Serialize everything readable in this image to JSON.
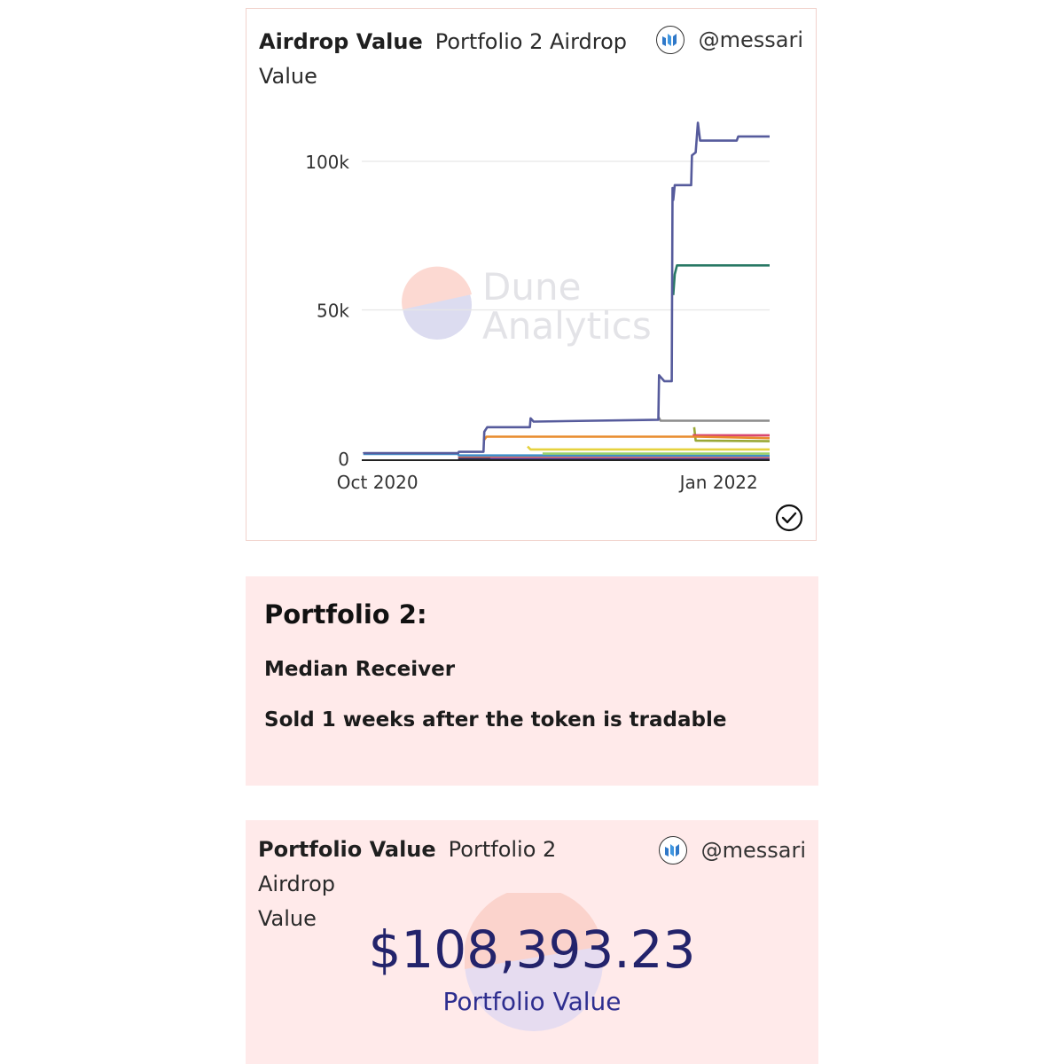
{
  "card1": {
    "title": "Airdrop Value",
    "subtitle_line1": "Portfolio 2 Airdrop",
    "subtitle_line2": "Value",
    "handle": "@messari",
    "logo_icon": "messari-logo-icon",
    "status_icon": "check-circle-icon"
  },
  "watermark": {
    "line1": "Dune",
    "line2": "Analytics"
  },
  "chart_data": {
    "type": "line",
    "x_tick_labels": [
      "Oct 2020",
      "Jan 2022"
    ],
    "y_tick_labels": [
      "0",
      "50k",
      "100k"
    ],
    "ylim": [
      0,
      115000
    ],
    "grid": true,
    "legend": "none",
    "series": [
      {
        "color": "#565b9c",
        "points": [
          [
            "2020-09-12",
            1600
          ],
          [
            "2020-09-13",
            1800
          ],
          [
            "2021-01-17",
            1800
          ],
          [
            "2021-01-18",
            2200
          ],
          [
            "2021-02-20",
            2200
          ],
          [
            "2021-02-21",
            9000
          ],
          [
            "2021-02-25",
            10500
          ],
          [
            "2021-04-23",
            10500
          ],
          [
            "2021-04-24",
            13500
          ],
          [
            "2021-04-28",
            12400
          ],
          [
            "2021-10-12",
            13000
          ],
          [
            "2021-10-13",
            28000
          ],
          [
            "2021-10-20",
            26000
          ],
          [
            "2021-10-30",
            26000
          ],
          [
            "2021-10-31",
            91000
          ],
          [
            "2021-11-01",
            87000
          ],
          [
            "2021-11-03",
            92000
          ],
          [
            "2021-11-25",
            92000
          ],
          [
            "2021-11-26",
            102000
          ],
          [
            "2021-12-01",
            103000
          ],
          [
            "2021-12-04",
            113000
          ],
          [
            "2021-12-07",
            107000
          ],
          [
            "2022-01-25",
            107000
          ],
          [
            "2022-01-27",
            108400
          ],
          [
            "2022-03-10",
            108400
          ]
        ]
      },
      {
        "color": "#287864",
        "points": [
          [
            "2021-11-01",
            55000
          ],
          [
            "2021-11-03",
            62000
          ],
          [
            "2021-11-06",
            65000
          ],
          [
            "2022-03-10",
            65000
          ]
        ]
      },
      {
        "color": "#8b8b8b",
        "points": [
          [
            "2021-10-12",
            14000
          ],
          [
            "2021-10-15",
            12700
          ],
          [
            "2022-03-10",
            12700
          ]
        ]
      },
      {
        "color": "#e88b2c",
        "points": [
          [
            "2021-02-20",
            6000
          ],
          [
            "2021-02-24",
            7300
          ],
          [
            "2021-12-01",
            7300
          ],
          [
            "2022-03-10",
            6800
          ]
        ]
      },
      {
        "color": "#d9466f",
        "points": [
          [
            "2021-11-27",
            7800
          ],
          [
            "2022-03-10",
            7800
          ]
        ]
      },
      {
        "color": "#9aa836",
        "points": [
          [
            "2021-11-29",
            10500
          ],
          [
            "2021-12-01",
            6000
          ],
          [
            "2022-03-10",
            5800
          ]
        ]
      },
      {
        "color": "#e6d23f",
        "points": [
          [
            "2021-04-20",
            4000
          ],
          [
            "2021-04-24",
            3000
          ],
          [
            "2022-03-10",
            3000
          ]
        ]
      },
      {
        "color": "#9ed16b",
        "points": [
          [
            "2021-05-10",
            1600
          ],
          [
            "2022-03-10",
            1600
          ]
        ]
      },
      {
        "color": "#3f8fca",
        "points": [
          [
            "2020-09-12",
            1500
          ],
          [
            "2021-01-17",
            1500
          ],
          [
            "2021-01-18",
            1000
          ],
          [
            "2022-03-10",
            900
          ]
        ]
      },
      {
        "color": "#e56f5a",
        "points": [
          [
            "2021-01-17",
            600
          ],
          [
            "2022-03-10",
            500
          ]
        ]
      },
      {
        "color": "#7a4ec4",
        "points": [
          [
            "2021-03-01",
            300
          ],
          [
            "2022-03-10",
            300
          ]
        ]
      },
      {
        "color": "#333366",
        "points": [
          [
            "2021-01-17",
            100
          ],
          [
            "2022-03-10",
            100
          ]
        ]
      }
    ]
  },
  "card2": {
    "heading": "Portfolio 2:",
    "line1": "Median Receiver",
    "line2": "Sold 1 weeks after the token is tradable"
  },
  "card3": {
    "title": "Portfolio Value",
    "subtitle_line1": "Portfolio 2 Airdrop",
    "subtitle_line2": "Value",
    "handle": "@messari",
    "value": "$108,393.23",
    "value_label": "Portfolio Value"
  }
}
